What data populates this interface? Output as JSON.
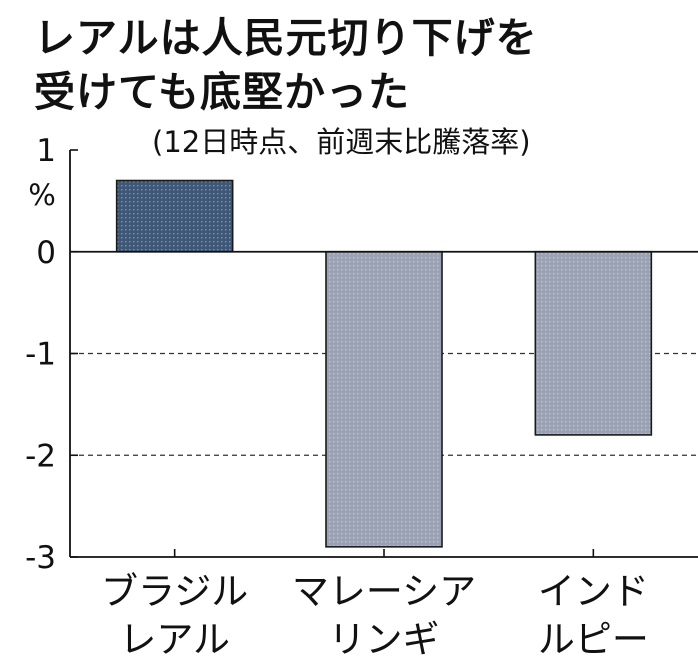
{
  "chart_data": {
    "type": "bar",
    "title_lines": [
      "レアルは人民元切り下げを",
      "受けても底堅かった"
    ],
    "subtitle": "(12日時点、前週末比騰落率)",
    "y_unit": "%",
    "ylim": [
      -3,
      1
    ],
    "yticks": [
      1,
      0,
      -1,
      -2,
      -3
    ],
    "ytick_labels": [
      "1",
      "0",
      "-1",
      "-2",
      "-3"
    ],
    "grid": "dashed at -1 and -2",
    "categories": [
      [
        "ブラジル",
        "レアル"
      ],
      [
        "マレーシア",
        "リンギ"
      ],
      [
        "インド",
        "ルピー"
      ]
    ],
    "values": [
      0.7,
      -2.9,
      -1.8
    ],
    "colors": [
      "#3f5878",
      "#9aa2b4",
      "#9aa2b4"
    ]
  }
}
